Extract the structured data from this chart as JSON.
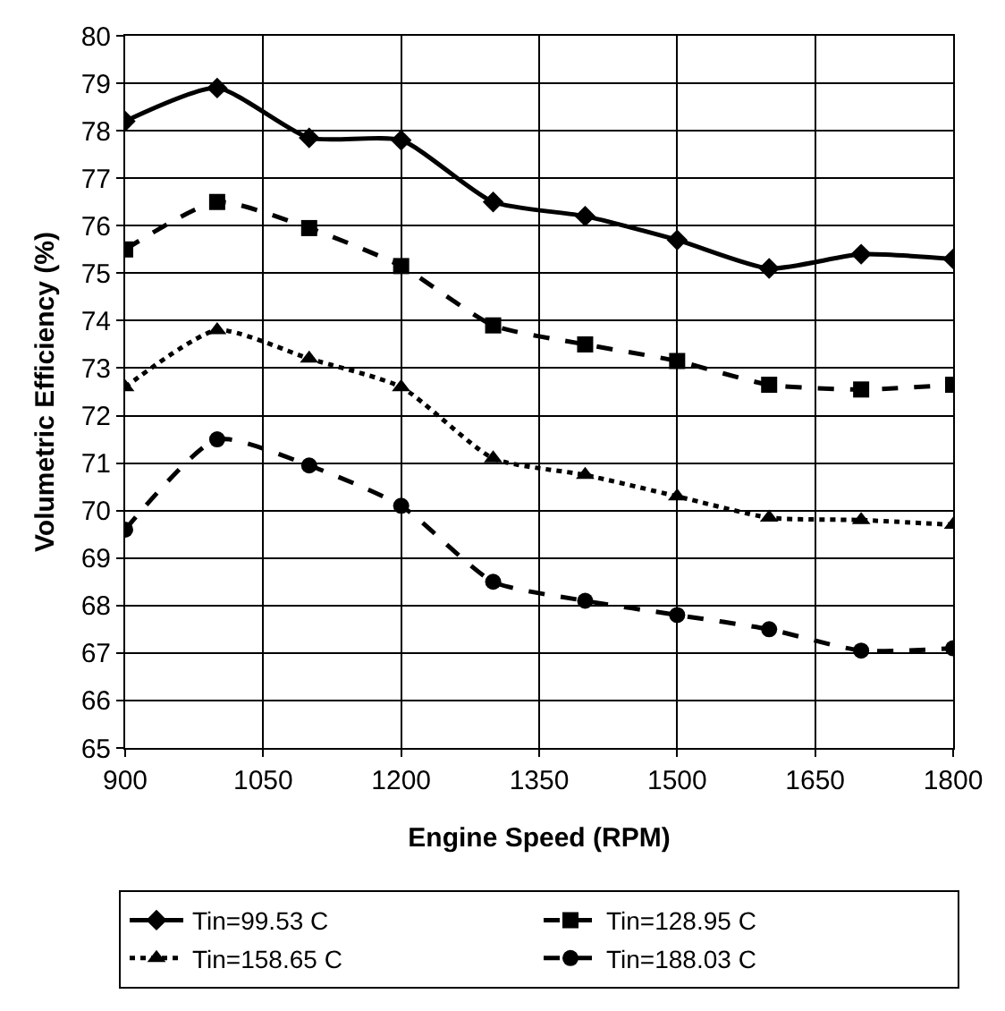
{
  "chart_data": {
    "type": "line",
    "xlabel": "Engine Speed (RPM)",
    "ylabel": "Volumetric Efficiency (%)",
    "x": [
      900,
      1000,
      1100,
      1200,
      1300,
      1400,
      1500,
      1600,
      1700,
      1800
    ],
    "xlim": [
      900,
      1800
    ],
    "xticks": [
      900,
      1050,
      1200,
      1350,
      1500,
      1650,
      1800
    ],
    "ylim": [
      65,
      80
    ],
    "yticks": [
      65,
      66,
      67,
      68,
      69,
      70,
      71,
      72,
      73,
      74,
      75,
      76,
      77,
      78,
      79,
      80
    ],
    "grid": true,
    "legend": "bottom",
    "series": [
      {
        "name": "Tin=99.53 C",
        "color": "#000000",
        "marker": "diamond",
        "line_style": "solid",
        "values": [
          78.2,
          78.9,
          77.85,
          77.8,
          76.5,
          76.2,
          75.7,
          75.1,
          75.4,
          75.3
        ]
      },
      {
        "name": "Tin=128.95 C",
        "color": "#000000",
        "marker": "square",
        "line_style": "dashed",
        "values": [
          75.5,
          76.5,
          75.95,
          75.15,
          73.9,
          73.5,
          73.15,
          72.65,
          72.55,
          72.65
        ]
      },
      {
        "name": "Tin=158.65 C",
        "color": "#000000",
        "marker": "triangle",
        "line_style": "dotted",
        "values": [
          72.6,
          73.8,
          73.2,
          72.6,
          71.1,
          70.75,
          70.3,
          69.85,
          69.8,
          69.7
        ]
      },
      {
        "name": "Tin=188.03 C",
        "color": "#000000",
        "marker": "circle",
        "line_style": "dashed",
        "values": [
          69.6,
          71.5,
          70.95,
          70.1,
          68.5,
          68.1,
          67.8,
          67.5,
          67.05,
          67.1
        ]
      }
    ]
  }
}
